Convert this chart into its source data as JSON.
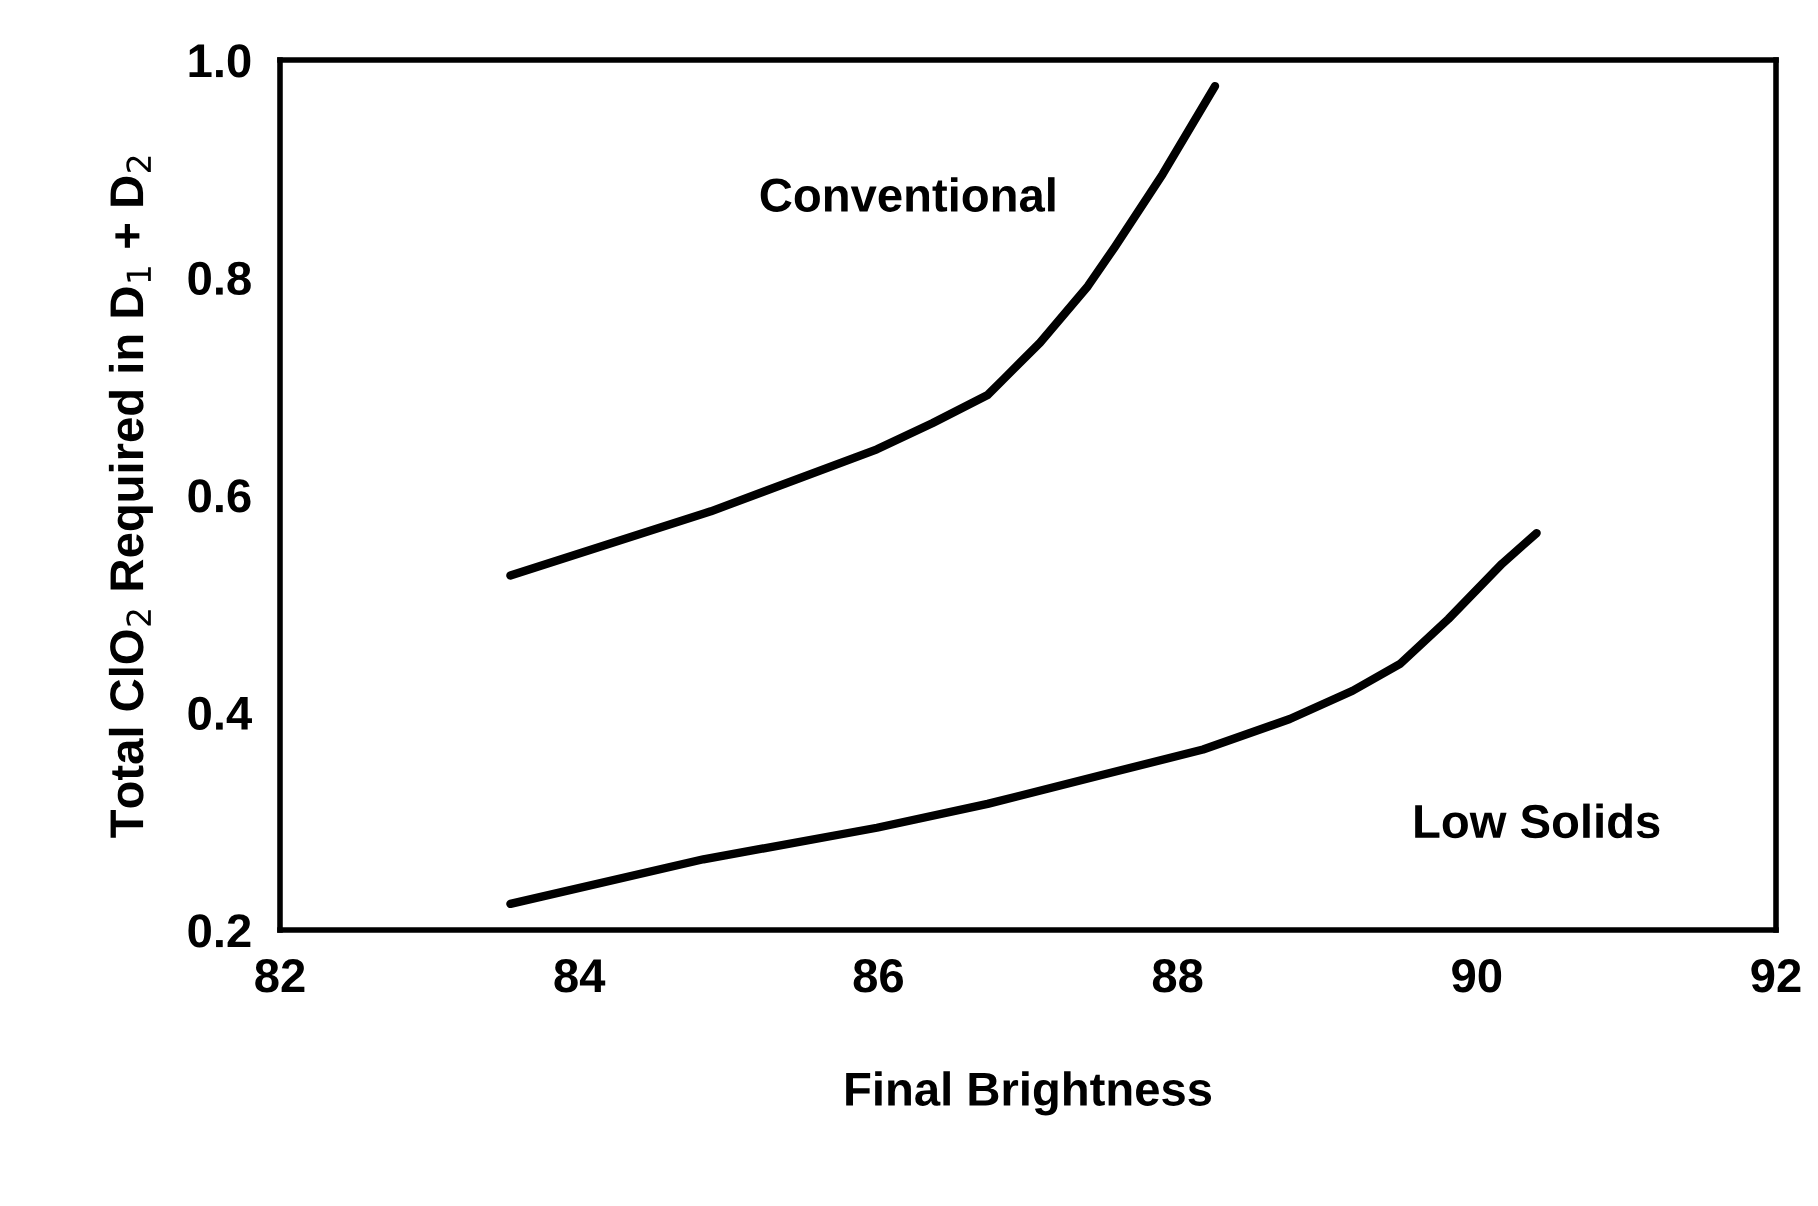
{
  "chart_data": {
    "type": "line",
    "xlabel": "Final Brightness",
    "ylabel": "Total ClO$_{2}$ Required in D$_{1}$ + D$_{2}$",
    "series": [
      {
        "name": "Conventional",
        "color": "#000000",
        "x": [
          83.54,
          84.88,
          85.99,
          86.36,
          86.73,
          86.84,
          87.08,
          87.4,
          87.58,
          87.9,
          88.25
        ],
        "values": [
          0.526,
          0.585,
          0.642,
          0.666,
          0.692,
          0.707,
          0.74,
          0.792,
          0.828,
          0.895,
          0.976
        ]
      },
      {
        "name": "Low Solids",
        "color": "#000000",
        "x": [
          83.54,
          84.83,
          85.99,
          86.73,
          87.48,
          88.17,
          88.75,
          89.17,
          89.49,
          89.81,
          90.17,
          90.4
        ],
        "values": [
          0.224,
          0.265,
          0.294,
          0.316,
          0.342,
          0.366,
          0.394,
          0.42,
          0.445,
          0.486,
          0.537,
          0.565
        ]
      }
    ],
    "xlim": [
      82,
      92
    ],
    "xticks": [
      82,
      84,
      86,
      88,
      90,
      92
    ],
    "ylim": [
      0.2,
      1.0
    ],
    "yticks": [
      0.2,
      0.4,
      0.6,
      0.8,
      {
        "value": 1.0,
        "label": "1.0"
      }
    ],
    "grid": false,
    "legend": false,
    "marker": "none",
    "line_style": "solid"
  }
}
